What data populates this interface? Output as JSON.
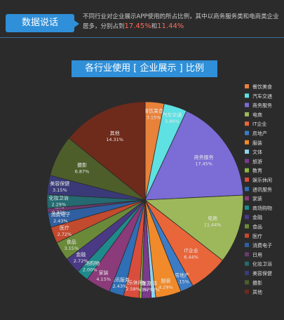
{
  "header": {
    "badge": "数据说话",
    "text_prefix": "不同行业对企业展示APP使用的所占比例，其中以商务服务类和电商类企业居多，分别占到",
    "pct1": "17.45%",
    "text_and": "和",
    "pct2": "11.44%"
  },
  "chart_data": {
    "type": "pie",
    "title": "各行业使用 [ 企业展示 ] 比例",
    "slices": [
      {
        "name": "餐饮美食",
        "value": 3.15,
        "value_label": "3.15%",
        "color": "#e8823a"
      },
      {
        "name": "汽车交通",
        "value": 3.86,
        "value_label": "3.86%",
        "color": "#5fe0e2"
      },
      {
        "name": "商务服务",
        "value": 17.45,
        "value_label": "17.45%",
        "color": "#7b6cd6"
      },
      {
        "name": "电商",
        "value": 11.44,
        "value_label": "11.44%",
        "color": "#9db85a"
      },
      {
        "name": "IT企业",
        "value": 6.44,
        "value_label": "6.44%",
        "color": "#e8663a"
      },
      {
        "name": "房地产",
        "value": 2.15,
        "value_label": "2.15%",
        "color": "#3c7cc6"
      },
      {
        "name": "服装",
        "value": 4.29,
        "value_label": "4.29%",
        "color": "#f08a2a"
      },
      {
        "name": "文体",
        "value": 0.72,
        "value_label": "0.72%",
        "color": "#8fd3ee"
      },
      {
        "name": "旅游",
        "value": 1.57,
        "value_label": "1.57%",
        "color": "#7b3a8c"
      },
      {
        "name": "教育",
        "value": 0.43,
        "value_label": "0.43%",
        "color": "#8ab83c"
      },
      {
        "name": "娱乐休闲",
        "value": 2.58,
        "value_label": "2.58%",
        "color": "#d94d3c"
      },
      {
        "name": "通讯服务",
        "value": 2.43,
        "value_label": "2.43%",
        "color": "#2e6fb5"
      },
      {
        "name": "家装",
        "value": 4.15,
        "value_label": "4.15%",
        "color": "#8b3a7a"
      },
      {
        "name": "商场购物",
        "value": 2.0,
        "value_label": "2.00%",
        "color": "#1f8a8c"
      },
      {
        "name": "金融",
        "value": 2.72,
        "value_label": "2.72%",
        "color": "#4a3a86"
      },
      {
        "name": "食品",
        "value": 3.15,
        "value_label": "3.15%",
        "color": "#6a8a3a"
      },
      {
        "name": "医疗",
        "value": 2.72,
        "value_label": "2.72%",
        "color": "#c24a2e"
      },
      {
        "name": "消费电子",
        "value": 2.43,
        "value_label": "2.43%",
        "color": "#2f5fa0"
      },
      {
        "name": "日用",
        "value": 0.72,
        "value_label": "0.72%",
        "color": "#6a3a6e"
      },
      {
        "name": "化妆卫浴",
        "value": 2.29,
        "value_label": "2.29%",
        "color": "#246a70"
      },
      {
        "name": "美容保健",
        "value": 3.15,
        "value_label": "3.15%",
        "color": "#3a3a78"
      },
      {
        "name": "摄影",
        "value": 6.87,
        "value_label": "6.87%",
        "color": "#4e5e2a"
      },
      {
        "name": "其他",
        "value": 14.31,
        "value_label": "14.31%",
        "color": "#6e2a1a"
      }
    ],
    "legend_position": "right"
  }
}
